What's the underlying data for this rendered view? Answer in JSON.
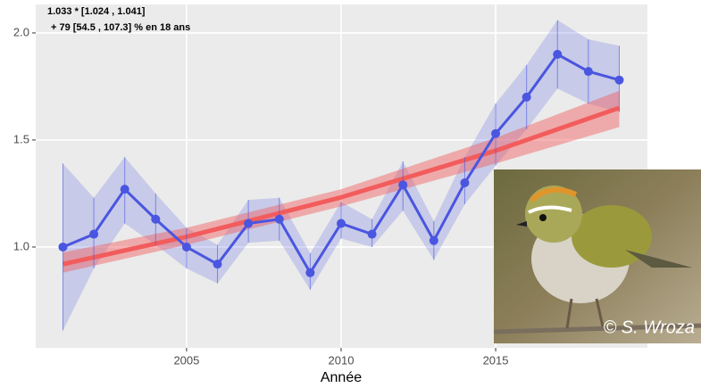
{
  "chart_data": {
    "type": "line",
    "annotations": [
      "1.033 *  [1.024 , 1.041]",
      "+ 79 [54.5 , 107.3] % en 18 ans"
    ],
    "x_label": "Année",
    "photo_credit": "© S. Wroza",
    "x": [
      2001,
      2002,
      2003,
      2004,
      2005,
      2006,
      2007,
      2008,
      2009,
      2010,
      2011,
      2012,
      2013,
      2014,
      2015,
      2016,
      2017,
      2018,
      2019
    ],
    "series": [
      {
        "color": "#4a55e0",
        "values": [
          1.0,
          1.06,
          1.27,
          1.13,
          1.0,
          0.92,
          1.11,
          1.13,
          0.88,
          1.11,
          1.06,
          1.29,
          1.03,
          1.3,
          1.53,
          1.7,
          1.9,
          1.82,
          1.78
        ],
        "lower": [
          0.61,
          0.9,
          1.11,
          1.01,
          0.9,
          0.83,
          1.02,
          1.03,
          0.8,
          1.04,
          1.0,
          1.17,
          0.94,
          1.2,
          1.38,
          1.55,
          1.74,
          1.67,
          1.63
        ],
        "upper": [
          1.39,
          1.23,
          1.42,
          1.25,
          1.09,
          1.01,
          1.22,
          1.23,
          0.97,
          1.21,
          1.13,
          1.4,
          1.12,
          1.42,
          1.67,
          1.85,
          2.06,
          1.97,
          1.94
        ]
      }
    ],
    "trend": {
      "color": "#f25c5c",
      "x": [
        2001,
        2005,
        2010,
        2015,
        2019
      ],
      "values": [
        0.92,
        1.048,
        1.232,
        1.45,
        1.65
      ],
      "lower": [
        0.88,
        1.01,
        1.19,
        1.39,
        1.56
      ],
      "upper": [
        0.975,
        1.09,
        1.27,
        1.51,
        1.73
      ]
    },
    "xlim": [
      2000.12,
      2019.91
    ],
    "xticks": [
      2005,
      2010,
      2015
    ],
    "ylim": [
      0.529,
      2.133
    ],
    "yticks": [
      {
        "value": 1.0,
        "label": "1.0"
      },
      {
        "value": 1.5,
        "label": "1.5"
      },
      {
        "value": 2.0,
        "label": "2.0"
      }
    ],
    "grid": true
  }
}
